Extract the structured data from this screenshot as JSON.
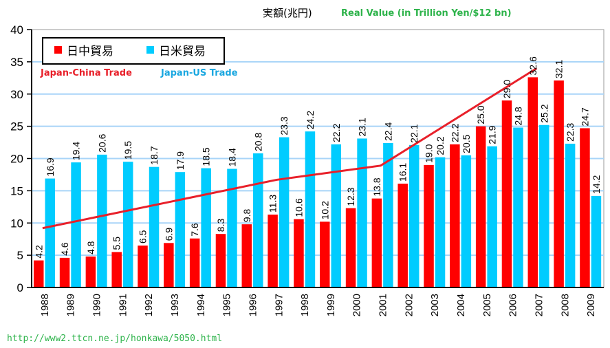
{
  "chart_data": {
    "type": "bar",
    "title_jp": "実額(兆円)",
    "title_en": "Real Value (in Trillion Yen/$12 bn)",
    "xlabel": "",
    "ylabel": "",
    "ylim": [
      0,
      40
    ],
    "yticks": [
      "0",
      "5",
      "10",
      "15",
      "20",
      "25",
      "30",
      "35",
      "40"
    ],
    "grid": true,
    "legend_position": "top-left",
    "categories": [
      "1988",
      "1989",
      "1990",
      "1991",
      "1992",
      "1993",
      "1994",
      "1995",
      "1996",
      "1997",
      "1998",
      "1999",
      "2000",
      "2001",
      "2002",
      "2003",
      "2004",
      "2005",
      "2006",
      "2007",
      "2008",
      "2009"
    ],
    "series": [
      {
        "name": "日中貿易",
        "name_en": "Japan-China Trade",
        "color": "#ff0000",
        "values": [
          4.2,
          4.6,
          4.8,
          5.5,
          6.5,
          6.9,
          7.6,
          8.3,
          9.8,
          11.3,
          10.6,
          10.2,
          12.3,
          13.8,
          16.1,
          19.0,
          22.2,
          25.0,
          29.0,
          32.6,
          32.1,
          24.7
        ],
        "labels": [
          "4.2",
          "4.6",
          "4.8",
          "5.5",
          "6.5",
          "6.9",
          "7.6",
          "8.3",
          "9.8",
          "11.3",
          "10.6",
          "10.2",
          "12.3",
          "13.8",
          "16.1",
          "19.0",
          "22.2",
          "25.0",
          "29.0",
          "32.6",
          "32.1",
          "24.7"
        ]
      },
      {
        "name": "日米貿易",
        "name_en": "Japan-US Trade",
        "color": "#00ccff",
        "values": [
          16.9,
          19.4,
          20.6,
          19.5,
          18.7,
          17.9,
          18.5,
          18.4,
          20.8,
          23.3,
          24.2,
          22.2,
          23.1,
          22.4,
          22.1,
          20.2,
          20.5,
          21.9,
          24.8,
          25.2,
          22.3,
          14.2
        ],
        "labels": [
          "16.9",
          "19.4",
          "20.6",
          "19.5",
          "18.7",
          "17.9",
          "18.5",
          "18.4",
          "20.8",
          "23.3",
          "24.2",
          "22.2",
          "23.1",
          "22.4",
          "22.1",
          "20.2",
          "20.5",
          "21.9",
          "24.8",
          "25.2",
          "22.3",
          "14.2"
        ]
      }
    ],
    "annotations": [
      {
        "type": "trend_line",
        "color": "#e8202a",
        "points": [
          {
            "x": "1988",
            "y": 9.2
          },
          {
            "x": "1997",
            "y": 16.7
          },
          {
            "x": "2001",
            "y": 18.9
          },
          {
            "x": "2007",
            "y": 34.0
          }
        ]
      }
    ]
  },
  "source_url": "http://www2.ttcn.ne.jp/honkawa/5050.html"
}
